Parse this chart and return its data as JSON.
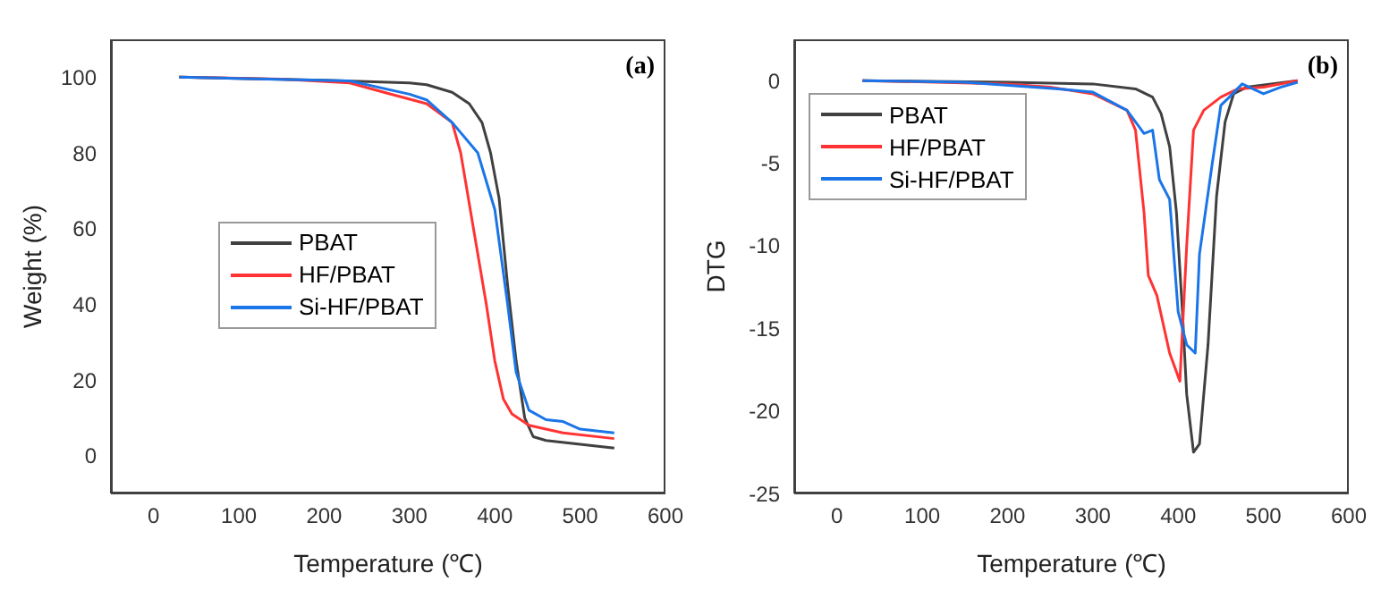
{
  "chart_data": [
    {
      "type": "line",
      "xlabel": "Temperature (℃)",
      "ylabel": "Weight (%)",
      "annotations": [
        "(a)"
      ],
      "xlim": [
        -50,
        600
      ],
      "xticks": [
        0,
        100,
        200,
        300,
        400,
        500,
        600
      ],
      "ylim": [
        -10,
        110
      ],
      "yticks": [
        0,
        20,
        40,
        60,
        80,
        100
      ],
      "grid": false,
      "legend": "left",
      "marker": "none",
      "line_style": "solid",
      "series": [
        {
          "name": "PBAT",
          "color": "#404040",
          "x": [
            30,
            200,
            300,
            320,
            350,
            370,
            385,
            395,
            405,
            415,
            425,
            435,
            445,
            460,
            500,
            540
          ],
          "values": [
            100,
            99.2,
            98.5,
            98,
            96,
            93,
            88,
            80,
            68,
            45,
            25,
            10,
            5,
            4,
            3,
            2
          ]
        },
        {
          "name": "HF/PBAT",
          "color": "#ff3333",
          "x": [
            30,
            150,
            230,
            270,
            320,
            350,
            360,
            375,
            390,
            400,
            410,
            420,
            440,
            480,
            540
          ],
          "values": [
            100,
            99.5,
            98.5,
            96,
            93,
            88,
            80,
            60,
            40,
            25,
            15,
            11,
            8,
            6,
            4.5
          ]
        },
        {
          "name": "Si-HF/PBAT",
          "color": "#1a75e8",
          "x": [
            30,
            230,
            300,
            320,
            350,
            380,
            400,
            415,
            425,
            440,
            460,
            480,
            500,
            540
          ],
          "values": [
            100,
            99,
            95.5,
            94,
            88,
            80,
            65,
            40,
            22,
            12,
            9.5,
            9,
            7,
            6
          ]
        }
      ]
    },
    {
      "type": "line",
      "xlabel": "Temperature (℃)",
      "ylabel": "DTG",
      "annotations": [
        "(b)"
      ],
      "xlim": [
        -50,
        600
      ],
      "xticks": [
        0,
        100,
        200,
        300,
        400,
        500,
        600
      ],
      "ylim": [
        -25,
        2.5
      ],
      "yticks": [
        -25,
        -20,
        -15,
        -10,
        -5,
        0
      ],
      "grid": false,
      "legend": "top left",
      "marker": "none",
      "line_style": "solid",
      "series": [
        {
          "name": "PBAT",
          "color": "#404040",
          "x": [
            30,
            200,
            300,
            350,
            370,
            380,
            390,
            398,
            405,
            410,
            418,
            425,
            435,
            445,
            455,
            465,
            480,
            540
          ],
          "values": [
            0,
            -0.1,
            -0.2,
            -0.5,
            -1,
            -2,
            -4,
            -8,
            -14,
            -19,
            -22.5,
            -22,
            -16,
            -7,
            -2.5,
            -0.8,
            -0.4,
            0
          ]
        },
        {
          "name": "HF/PBAT",
          "color": "#ff3333",
          "x": [
            30,
            200,
            250,
            300,
            340,
            350,
            360,
            365,
            375,
            390,
            402,
            410,
            418,
            430,
            450,
            470,
            500,
            540
          ],
          "values": [
            0,
            -0.2,
            -0.4,
            -0.8,
            -1.8,
            -3,
            -8,
            -11.8,
            -13,
            -16.5,
            -18.2,
            -10,
            -3,
            -1.8,
            -1,
            -0.5,
            -0.4,
            0
          ]
        },
        {
          "name": "Si-HF/PBAT",
          "color": "#1a75e8",
          "x": [
            30,
            150,
            260,
            300,
            340,
            350,
            360,
            370,
            378,
            390,
            400,
            410,
            420,
            425,
            440,
            450,
            460,
            475,
            500,
            520,
            540
          ],
          "values": [
            0,
            -0.1,
            -0.5,
            -0.7,
            -1.8,
            -2.5,
            -3.2,
            -3,
            -6,
            -7.2,
            -14,
            -16,
            -16.5,
            -10.5,
            -5,
            -1.5,
            -1,
            -0.2,
            -0.8,
            -0.4,
            -0.1
          ]
        }
      ]
    }
  ]
}
